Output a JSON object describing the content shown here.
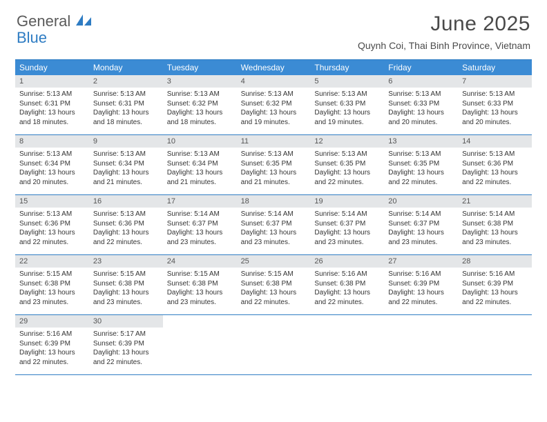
{
  "logo": {
    "general": "General",
    "blue": "Blue"
  },
  "title": "June 2025",
  "location": "Quynh Coi, Thai Binh Province, Vietnam",
  "colors": {
    "header_bg": "#3b8bd4",
    "border": "#2e7cc3",
    "daynum_bg": "#e4e6e8",
    "text": "#333333",
    "title_text": "#4a4a4a"
  },
  "day_headers": [
    "Sunday",
    "Monday",
    "Tuesday",
    "Wednesday",
    "Thursday",
    "Friday",
    "Saturday"
  ],
  "weeks": [
    [
      {
        "num": "1",
        "sunrise": "Sunrise: 5:13 AM",
        "sunset": "Sunset: 6:31 PM",
        "daylight1": "Daylight: 13 hours",
        "daylight2": "and 18 minutes."
      },
      {
        "num": "2",
        "sunrise": "Sunrise: 5:13 AM",
        "sunset": "Sunset: 6:31 PM",
        "daylight1": "Daylight: 13 hours",
        "daylight2": "and 18 minutes."
      },
      {
        "num": "3",
        "sunrise": "Sunrise: 5:13 AM",
        "sunset": "Sunset: 6:32 PM",
        "daylight1": "Daylight: 13 hours",
        "daylight2": "and 18 minutes."
      },
      {
        "num": "4",
        "sunrise": "Sunrise: 5:13 AM",
        "sunset": "Sunset: 6:32 PM",
        "daylight1": "Daylight: 13 hours",
        "daylight2": "and 19 minutes."
      },
      {
        "num": "5",
        "sunrise": "Sunrise: 5:13 AM",
        "sunset": "Sunset: 6:33 PM",
        "daylight1": "Daylight: 13 hours",
        "daylight2": "and 19 minutes."
      },
      {
        "num": "6",
        "sunrise": "Sunrise: 5:13 AM",
        "sunset": "Sunset: 6:33 PM",
        "daylight1": "Daylight: 13 hours",
        "daylight2": "and 20 minutes."
      },
      {
        "num": "7",
        "sunrise": "Sunrise: 5:13 AM",
        "sunset": "Sunset: 6:33 PM",
        "daylight1": "Daylight: 13 hours",
        "daylight2": "and 20 minutes."
      }
    ],
    [
      {
        "num": "8",
        "sunrise": "Sunrise: 5:13 AM",
        "sunset": "Sunset: 6:34 PM",
        "daylight1": "Daylight: 13 hours",
        "daylight2": "and 20 minutes."
      },
      {
        "num": "9",
        "sunrise": "Sunrise: 5:13 AM",
        "sunset": "Sunset: 6:34 PM",
        "daylight1": "Daylight: 13 hours",
        "daylight2": "and 21 minutes."
      },
      {
        "num": "10",
        "sunrise": "Sunrise: 5:13 AM",
        "sunset": "Sunset: 6:34 PM",
        "daylight1": "Daylight: 13 hours",
        "daylight2": "and 21 minutes."
      },
      {
        "num": "11",
        "sunrise": "Sunrise: 5:13 AM",
        "sunset": "Sunset: 6:35 PM",
        "daylight1": "Daylight: 13 hours",
        "daylight2": "and 21 minutes."
      },
      {
        "num": "12",
        "sunrise": "Sunrise: 5:13 AM",
        "sunset": "Sunset: 6:35 PM",
        "daylight1": "Daylight: 13 hours",
        "daylight2": "and 22 minutes."
      },
      {
        "num": "13",
        "sunrise": "Sunrise: 5:13 AM",
        "sunset": "Sunset: 6:35 PM",
        "daylight1": "Daylight: 13 hours",
        "daylight2": "and 22 minutes."
      },
      {
        "num": "14",
        "sunrise": "Sunrise: 5:13 AM",
        "sunset": "Sunset: 6:36 PM",
        "daylight1": "Daylight: 13 hours",
        "daylight2": "and 22 minutes."
      }
    ],
    [
      {
        "num": "15",
        "sunrise": "Sunrise: 5:13 AM",
        "sunset": "Sunset: 6:36 PM",
        "daylight1": "Daylight: 13 hours",
        "daylight2": "and 22 minutes."
      },
      {
        "num": "16",
        "sunrise": "Sunrise: 5:13 AM",
        "sunset": "Sunset: 6:36 PM",
        "daylight1": "Daylight: 13 hours",
        "daylight2": "and 22 minutes."
      },
      {
        "num": "17",
        "sunrise": "Sunrise: 5:14 AM",
        "sunset": "Sunset: 6:37 PM",
        "daylight1": "Daylight: 13 hours",
        "daylight2": "and 23 minutes."
      },
      {
        "num": "18",
        "sunrise": "Sunrise: 5:14 AM",
        "sunset": "Sunset: 6:37 PM",
        "daylight1": "Daylight: 13 hours",
        "daylight2": "and 23 minutes."
      },
      {
        "num": "19",
        "sunrise": "Sunrise: 5:14 AM",
        "sunset": "Sunset: 6:37 PM",
        "daylight1": "Daylight: 13 hours",
        "daylight2": "and 23 minutes."
      },
      {
        "num": "20",
        "sunrise": "Sunrise: 5:14 AM",
        "sunset": "Sunset: 6:37 PM",
        "daylight1": "Daylight: 13 hours",
        "daylight2": "and 23 minutes."
      },
      {
        "num": "21",
        "sunrise": "Sunrise: 5:14 AM",
        "sunset": "Sunset: 6:38 PM",
        "daylight1": "Daylight: 13 hours",
        "daylight2": "and 23 minutes."
      }
    ],
    [
      {
        "num": "22",
        "sunrise": "Sunrise: 5:15 AM",
        "sunset": "Sunset: 6:38 PM",
        "daylight1": "Daylight: 13 hours",
        "daylight2": "and 23 minutes."
      },
      {
        "num": "23",
        "sunrise": "Sunrise: 5:15 AM",
        "sunset": "Sunset: 6:38 PM",
        "daylight1": "Daylight: 13 hours",
        "daylight2": "and 23 minutes."
      },
      {
        "num": "24",
        "sunrise": "Sunrise: 5:15 AM",
        "sunset": "Sunset: 6:38 PM",
        "daylight1": "Daylight: 13 hours",
        "daylight2": "and 23 minutes."
      },
      {
        "num": "25",
        "sunrise": "Sunrise: 5:15 AM",
        "sunset": "Sunset: 6:38 PM",
        "daylight1": "Daylight: 13 hours",
        "daylight2": "and 22 minutes."
      },
      {
        "num": "26",
        "sunrise": "Sunrise: 5:16 AM",
        "sunset": "Sunset: 6:38 PM",
        "daylight1": "Daylight: 13 hours",
        "daylight2": "and 22 minutes."
      },
      {
        "num": "27",
        "sunrise": "Sunrise: 5:16 AM",
        "sunset": "Sunset: 6:39 PM",
        "daylight1": "Daylight: 13 hours",
        "daylight2": "and 22 minutes."
      },
      {
        "num": "28",
        "sunrise": "Sunrise: 5:16 AM",
        "sunset": "Sunset: 6:39 PM",
        "daylight1": "Daylight: 13 hours",
        "daylight2": "and 22 minutes."
      }
    ],
    [
      {
        "num": "29",
        "sunrise": "Sunrise: 5:16 AM",
        "sunset": "Sunset: 6:39 PM",
        "daylight1": "Daylight: 13 hours",
        "daylight2": "and 22 minutes."
      },
      {
        "num": "30",
        "sunrise": "Sunrise: 5:17 AM",
        "sunset": "Sunset: 6:39 PM",
        "daylight1": "Daylight: 13 hours",
        "daylight2": "and 22 minutes."
      },
      null,
      null,
      null,
      null,
      null
    ]
  ]
}
